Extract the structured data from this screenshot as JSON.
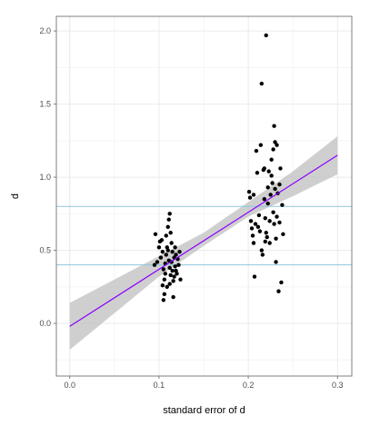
{
  "chart_data": {
    "type": "scatter",
    "title": "",
    "xlabel": "standard error of d",
    "ylabel": "d",
    "xlim": [
      -0.015,
      0.316
    ],
    "ylim": [
      -0.36,
      2.1
    ],
    "x_ticks": [
      0.0,
      0.1,
      0.2,
      0.3
    ],
    "x_tick_labels": [
      "0.0",
      "0.1",
      "0.2",
      "0.3"
    ],
    "y_ticks": [
      0.0,
      0.5,
      1.0,
      1.5,
      2.0
    ],
    "y_tick_labels": [
      "0.0",
      "0.5",
      "1.0",
      "1.5",
      "2.0"
    ],
    "grid": true,
    "legend": "none",
    "reference_lines_y": [
      0.4,
      0.8
    ],
    "regression": {
      "x_range": [
        0.0,
        0.3
      ],
      "intercept": -0.02,
      "slope": 3.9,
      "ci_lower": [
        [
          0.0,
          -0.18
        ],
        [
          0.1,
          0.32
        ],
        [
          0.15,
          0.53
        ],
        [
          0.2,
          0.73
        ],
        [
          0.25,
          0.87
        ],
        [
          0.3,
          1.02
        ]
      ],
      "ci_upper": [
        [
          0.0,
          0.14
        ],
        [
          0.1,
          0.46
        ],
        [
          0.15,
          0.62
        ],
        [
          0.2,
          0.83
        ],
        [
          0.25,
          1.04
        ],
        [
          0.3,
          1.28
        ]
      ]
    },
    "colors": {
      "points": "#000000",
      "regression_line": "#8b00ff",
      "ci_band": "#bfbfbf",
      "reference_lines": "#8ec7dd",
      "grid": "#ebebeb",
      "panel_border": "#7f7f7f"
    },
    "points": [
      [
        0.096,
        0.61
      ],
      [
        0.098,
        0.42
      ],
      [
        0.095,
        0.4
      ],
      [
        0.1,
        0.52
      ],
      [
        0.101,
        0.56
      ],
      [
        0.103,
        0.57
      ],
      [
        0.104,
        0.49
      ],
      [
        0.102,
        0.45
      ],
      [
        0.105,
        0.37
      ],
      [
        0.106,
        0.3
      ],
      [
        0.104,
        0.26
      ],
      [
        0.106,
        0.2
      ],
      [
        0.105,
        0.16
      ],
      [
        0.107,
        0.34
      ],
      [
        0.108,
        0.47
      ],
      [
        0.108,
        0.6
      ],
      [
        0.11,
        0.66
      ],
      [
        0.111,
        0.71
      ],
      [
        0.112,
        0.75
      ],
      [
        0.11,
        0.5
      ],
      [
        0.111,
        0.43
      ],
      [
        0.112,
        0.38
      ],
      [
        0.113,
        0.33
      ],
      [
        0.112,
        0.27
      ],
      [
        0.114,
        0.42
      ],
      [
        0.114,
        0.55
      ],
      [
        0.115,
        0.49
      ],
      [
        0.115,
        0.36
      ],
      [
        0.116,
        0.29
      ],
      [
        0.116,
        0.18
      ],
      [
        0.117,
        0.45
      ],
      [
        0.118,
        0.52
      ],
      [
        0.118,
        0.39
      ],
      [
        0.119,
        0.47
      ],
      [
        0.12,
        0.34
      ],
      [
        0.121,
        0.44
      ],
      [
        0.122,
        0.4
      ],
      [
        0.123,
        0.49
      ],
      [
        0.124,
        0.3
      ],
      [
        0.109,
        0.52
      ],
      [
        0.113,
        0.62
      ],
      [
        0.119,
        0.36
      ],
      [
        0.107,
        0.41
      ],
      [
        0.117,
        0.32
      ],
      [
        0.109,
        0.25
      ],
      [
        0.201,
        0.9
      ],
      [
        0.202,
        0.86
      ],
      [
        0.203,
        0.7
      ],
      [
        0.204,
        0.65
      ],
      [
        0.205,
        0.6
      ],
      [
        0.206,
        0.55
      ],
      [
        0.206,
        0.88
      ],
      [
        0.207,
        0.32
      ],
      [
        0.208,
        0.68
      ],
      [
        0.209,
        1.18
      ],
      [
        0.21,
        1.03
      ],
      [
        0.211,
        0.66
      ],
      [
        0.212,
        0.74
      ],
      [
        0.213,
        0.63
      ],
      [
        0.214,
        1.22
      ],
      [
        0.215,
        1.64
      ],
      [
        0.215,
        0.5
      ],
      [
        0.216,
        0.47
      ],
      [
        0.217,
        1.05
      ],
      [
        0.218,
        1.06
      ],
      [
        0.218,
        0.85
      ],
      [
        0.219,
        0.72
      ],
      [
        0.22,
        1.97
      ],
      [
        0.22,
        0.62
      ],
      [
        0.221,
        0.59
      ],
      [
        0.222,
        0.93
      ],
      [
        0.222,
        0.82
      ],
      [
        0.223,
        1.04
      ],
      [
        0.224,
        0.7
      ],
      [
        0.224,
        0.55
      ],
      [
        0.225,
        0.88
      ],
      [
        0.226,
        1.12
      ],
      [
        0.226,
        1.01
      ],
      [
        0.227,
        0.96
      ],
      [
        0.228,
        1.19
      ],
      [
        0.228,
        0.76
      ],
      [
        0.229,
        1.35
      ],
      [
        0.229,
        0.68
      ],
      [
        0.23,
        1.24
      ],
      [
        0.23,
        0.92
      ],
      [
        0.231,
        0.58
      ],
      [
        0.232,
        1.22
      ],
      [
        0.232,
        0.73
      ],
      [
        0.233,
        0.89
      ],
      [
        0.234,
        0.22
      ],
      [
        0.235,
        0.95
      ],
      [
        0.235,
        0.69
      ],
      [
        0.236,
        1.06
      ],
      [
        0.237,
        0.28
      ],
      [
        0.238,
        0.81
      ],
      [
        0.239,
        0.61
      ],
      [
        0.231,
        0.42
      ],
      [
        0.219,
        0.56
      ]
    ]
  }
}
